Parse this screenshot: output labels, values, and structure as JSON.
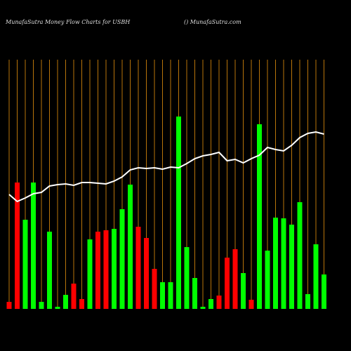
{
  "chart_data": {
    "type": "bar",
    "title": "MunafaSutra  Money Flow  Charts for USBH",
    "subtitle": "() MunafaSutra.com",
    "values": [
      10,
      180,
      127,
      180,
      10,
      110,
      3,
      20,
      36,
      14,
      99,
      110,
      112,
      114,
      142,
      177,
      117,
      101,
      57,
      38,
      38,
      274,
      88,
      44,
      3,
      14,
      19,
      73,
      85,
      51,
      13,
      263,
      83,
      130,
      129,
      120,
      152,
      21,
      92,
      49
    ],
    "colors": [
      "#ff0000",
      "#ff0000",
      "#00ff00",
      "#00ff00",
      "#00ff00",
      "#00ff00",
      "#00ff00",
      "#00ff00",
      "#ff0000",
      "#ff0000",
      "#00ff00",
      "#ff0000",
      "#ff0000",
      "#00ff00",
      "#00ff00",
      "#00ff00",
      "#ff0000",
      "#ff0000",
      "#ff0000",
      "#00ff00",
      "#00ff00",
      "#00ff00",
      "#00ff00",
      "#00ff00",
      "#00ff00",
      "#00ff00",
      "#ff0000",
      "#ff0000",
      "#ff0000",
      "#00ff00",
      "#ff0000",
      "#00ff00",
      "#00ff00",
      "#00ff00",
      "#00ff00",
      "#00ff00",
      "#00ff00",
      "#00ff00",
      "#00ff00",
      "#00ff00"
    ],
    "line": {
      "color": "#ffffff",
      "values": [
        163,
        153,
        158,
        164,
        166,
        175,
        177,
        178,
        176,
        180,
        180,
        179,
        178,
        182,
        188,
        198,
        201,
        200,
        201,
        199,
        202,
        201,
        207,
        214,
        218,
        220,
        223,
        211,
        213,
        208,
        214,
        219,
        230,
        227,
        225,
        233,
        244,
        250,
        252,
        249
      ]
    },
    "ylim": [
      0,
      300
    ],
    "grid_color": "#b8740a"
  }
}
